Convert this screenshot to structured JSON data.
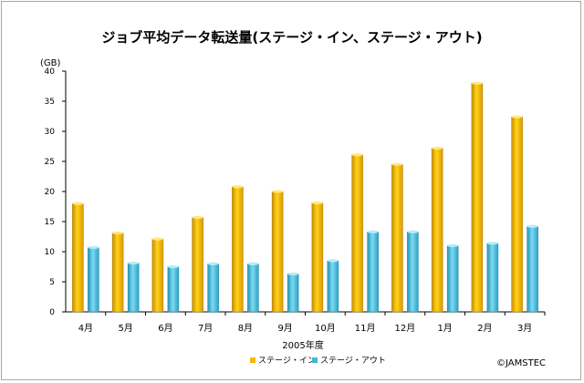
{
  "chart_data": {
    "type": "bar",
    "title": "ジョブ平均データ転送量(ステージ・イン、ステージ・アウト)",
    "ylabel": "(GB)",
    "xlabel": "2005年度",
    "ylim": [
      0,
      40
    ],
    "yticks": [
      0,
      5,
      10,
      15,
      20,
      25,
      30,
      35,
      40
    ],
    "grid": false,
    "legend_position": "bottom-center",
    "categories": [
      "4月",
      "5月",
      "6月",
      "7月",
      "8月",
      "9月",
      "10月",
      "11月",
      "12月",
      "1月",
      "2月",
      "3月"
    ],
    "series": [
      {
        "name": "ステージ・イン",
        "color": "#f5b800",
        "values": [
          18.0,
          13.1,
          12.1,
          15.7,
          20.8,
          20.0,
          18.1,
          26.1,
          24.5,
          27.2,
          38.0,
          32.4
        ]
      },
      {
        "name": "ステージ・アウト",
        "color": "#3fb8d8",
        "values": [
          10.7,
          8.1,
          7.5,
          8.0,
          8.0,
          6.3,
          8.5,
          13.3,
          13.3,
          11.0,
          11.4,
          14.2
        ]
      }
    ]
  },
  "credit": "©JAMSTEC"
}
